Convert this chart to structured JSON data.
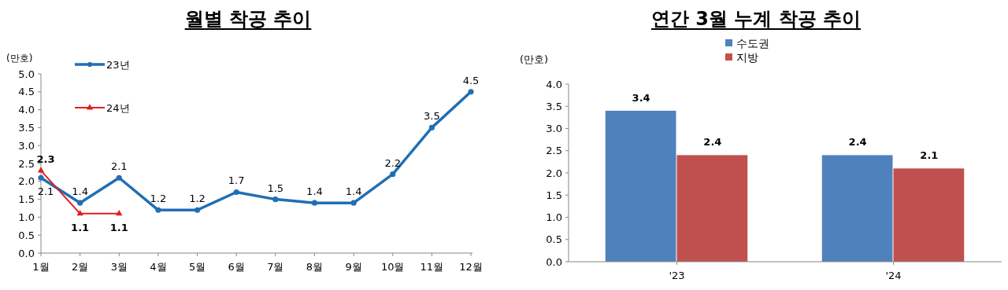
{
  "chart_data": [
    {
      "type": "line",
      "title": "월별 착공 추이",
      "ylabel": "(만호)",
      "categories": [
        "1월",
        "2월",
        "3월",
        "4월",
        "5월",
        "6월",
        "7월",
        "8월",
        "9월",
        "10월",
        "11월",
        "12월"
      ],
      "series": [
        {
          "name": "23년",
          "color": "#1f6fb4",
          "marker": "circle",
          "values": [
            2.1,
            1.4,
            2.1,
            1.2,
            1.2,
            1.7,
            1.5,
            1.4,
            1.4,
            2.2,
            3.5,
            4.5
          ]
        },
        {
          "name": "24년",
          "color": "#e0201b",
          "marker": "triangle",
          "values": [
            2.3,
            1.1,
            1.1,
            null,
            null,
            null,
            null,
            null,
            null,
            null,
            null,
            null
          ]
        }
      ],
      "ylim": [
        0,
        5
      ],
      "yticks": [
        {
          "value": 0,
          "label": "0.0"
        },
        0.5,
        {
          "value": 1,
          "label": "1.0"
        },
        1.5,
        {
          "value": 2,
          "label": "2.0"
        },
        2.5,
        {
          "value": 3,
          "label": "3.0"
        },
        3.5,
        {
          "value": 4,
          "label": "4.0"
        },
        4.5,
        {
          "value": 5,
          "label": "5.0"
        }
      ],
      "data_labels": true,
      "legend": "top left",
      "grid": false
    },
    {
      "type": "bar",
      "title": "연간 3월 누계 착공 추이",
      "ylabel": "(만호)",
      "categories": [
        "'23",
        "'24"
      ],
      "series": [
        {
          "name": "수도권",
          "color": "#4f81bd",
          "values": [
            3.4,
            2.4
          ]
        },
        {
          "name": "지방",
          "color": "#c0504d",
          "values": [
            2.4,
            2.1
          ]
        }
      ],
      "ylim": [
        0,
        4
      ],
      "yticks": [
        {
          "value": 0,
          "label": "0.0"
        },
        0.5,
        {
          "value": 1,
          "label": "1.0"
        },
        1.5,
        {
          "value": 2,
          "label": "2.0"
        },
        2.5,
        {
          "value": 3,
          "label": "3.0"
        },
        3.5,
        {
          "value": 4,
          "label": "4.0"
        }
      ],
      "data_labels": true,
      "legend": "top",
      "grid": false
    }
  ]
}
